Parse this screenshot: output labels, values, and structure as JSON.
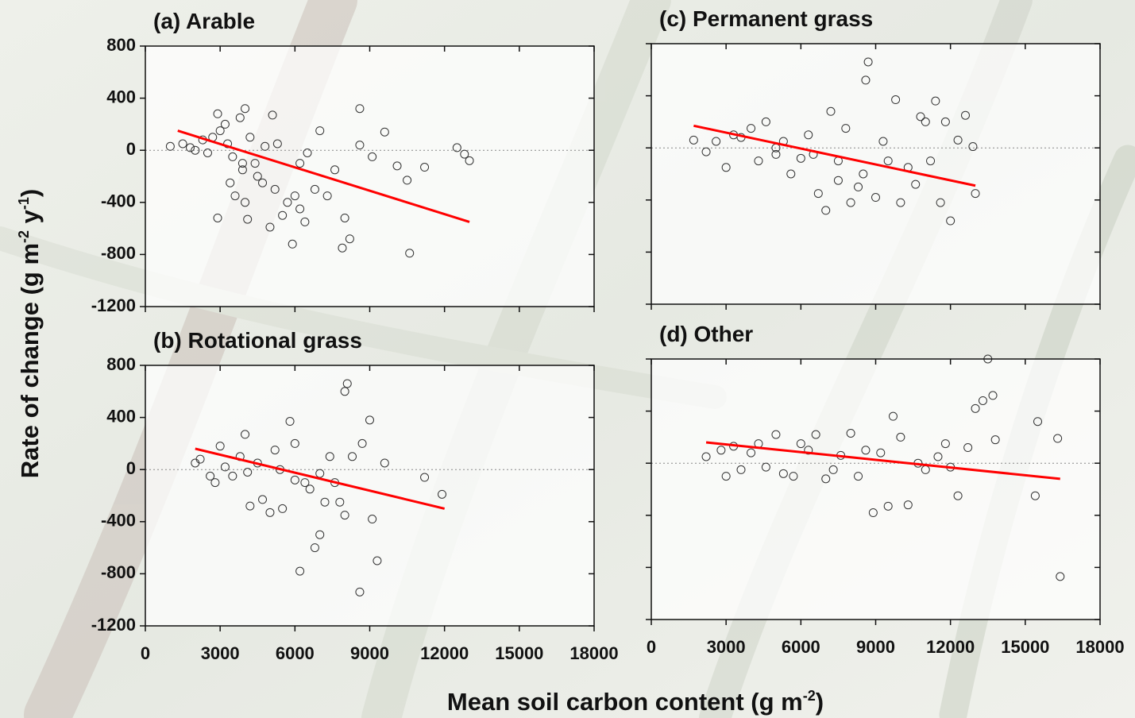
{
  "y_label": [
    "Rate of change (g m",
    "-2",
    " y",
    "-1",
    ")"
  ],
  "x_label": [
    "Mean soil carbon content (g m",
    "-2",
    ")"
  ],
  "chart_data": [
    {
      "type": "scatter",
      "title": "(a) Arable",
      "xlim": [
        0,
        18000
      ],
      "ylim": [
        -1200,
        800
      ],
      "xticks": [
        0,
        3000,
        6000,
        9000,
        12000,
        15000,
        18000
      ],
      "yticks": [
        800,
        400,
        0,
        -400,
        -800,
        -1200
      ],
      "show_xtick_labels": false,
      "show_ytick_labels": true,
      "zero_line": true,
      "series": [
        {
          "color": "#333333",
          "x": [
            1000,
            1500,
            1800,
            2000,
            2300,
            2500,
            2700,
            2900,
            3000,
            3200,
            3300,
            3500,
            3600,
            3800,
            3900,
            4000,
            4100,
            4200,
            4400,
            4500,
            4700,
            4800,
            5000,
            5200,
            5300,
            5500,
            5700,
            5900,
            6000,
            6200,
            6400,
            6500,
            6800,
            7000,
            7300,
            7600,
            7900,
            8000,
            8200,
            8600,
            9100,
            9600,
            10100,
            10500,
            10600,
            11200,
            12500,
            12800,
            13000,
            2900,
            3400,
            4000,
            5100,
            6200,
            8600,
            3900
          ],
          "values": [
            30,
            50,
            20,
            0,
            80,
            -20,
            100,
            -520,
            150,
            200,
            50,
            -50,
            -350,
            250,
            -150,
            320,
            -530,
            100,
            -100,
            -200,
            -250,
            30,
            -590,
            -300,
            50,
            -500,
            -400,
            -720,
            -350,
            -100,
            -550,
            -20,
            -300,
            150,
            -350,
            -150,
            -750,
            -520,
            -680,
            40,
            -50,
            140,
            -120,
            -230,
            -790,
            -130,
            20,
            -30,
            -80,
            280,
            -250,
            -400,
            270,
            -450,
            320,
            -100
          ]
        }
      ],
      "trend": {
        "color": "#ff0000",
        "x": [
          1300,
          13000
        ],
        "values": [
          150,
          -550
        ]
      }
    },
    {
      "type": "scatter",
      "title": "(b) Rotational grass",
      "xlim": [
        0,
        18000
      ],
      "ylim": [
        -1200,
        800
      ],
      "xticks": [
        0,
        3000,
        6000,
        9000,
        12000,
        15000,
        18000
      ],
      "yticks": [
        800,
        400,
        0,
        -400,
        -800,
        -1200
      ],
      "show_xtick_labels": true,
      "show_ytick_labels": true,
      "zero_line": true,
      "series": [
        {
          "color": "#333333",
          "x": [
            2000,
            2200,
            2600,
            2800,
            3000,
            3200,
            3500,
            3800,
            4000,
            4200,
            4500,
            4700,
            5000,
            5200,
            5500,
            5800,
            6000,
            6200,
            6400,
            6600,
            6800,
            7000,
            7200,
            7400,
            7600,
            7800,
            8000,
            8100,
            8300,
            8600,
            8700,
            9000,
            9100,
            9300,
            9600,
            11200,
            11900,
            4100,
            5400,
            6000,
            7000,
            8000
          ],
          "values": [
            50,
            80,
            -50,
            -100,
            180,
            20,
            -50,
            100,
            270,
            -280,
            50,
            -230,
            -330,
            150,
            -300,
            370,
            200,
            -780,
            -100,
            -150,
            -600,
            -500,
            -250,
            100,
            -100,
            -250,
            600,
            660,
            100,
            -940,
            200,
            380,
            -380,
            -700,
            50,
            -60,
            -190,
            -20,
            0,
            -80,
            -30,
            -350
          ]
        }
      ],
      "trend": {
        "color": "#ff0000",
        "x": [
          2000,
          12000
        ],
        "values": [
          160,
          -300
        ]
      }
    },
    {
      "type": "scatter",
      "title": "(c) Permanent grass",
      "xlim": [
        0,
        18000
      ],
      "ylim": [
        -1200,
        800
      ],
      "xticks": [
        0,
        3000,
        6000,
        9000,
        12000,
        15000,
        18000
      ],
      "yticks": [
        800,
        400,
        0,
        -400,
        -800,
        -1200
      ],
      "show_xtick_labels": false,
      "show_ytick_labels": false,
      "zero_line": true,
      "series": [
        {
          "color": "#333333",
          "x": [
            1700,
            2200,
            2600,
            3000,
            3300,
            3600,
            4000,
            4300,
            4600,
            5000,
            5300,
            5600,
            6000,
            6300,
            6700,
            7000,
            7200,
            7500,
            7800,
            8000,
            8300,
            8600,
            8700,
            9000,
            9300,
            9500,
            9800,
            10000,
            10300,
            10600,
            10800,
            11000,
            11200,
            11400,
            11600,
            11800,
            12000,
            12300,
            12600,
            12900,
            13000,
            5000,
            6500,
            7500,
            8500
          ],
          "values": [
            60,
            -30,
            50,
            -150,
            100,
            80,
            150,
            -100,
            200,
            -50,
            50,
            -200,
            -80,
            100,
            -350,
            -480,
            280,
            -250,
            150,
            -420,
            -300,
            520,
            660,
            -380,
            50,
            -100,
            370,
            -420,
            -150,
            -280,
            240,
            200,
            -100,
            360,
            -420,
            200,
            -560,
            60,
            250,
            10,
            -350,
            0,
            -50,
            -100,
            -200
          ]
        }
      ],
      "trend": {
        "color": "#ff0000",
        "x": [
          1700,
          13000
        ],
        "values": [
          170,
          -290
        ]
      }
    },
    {
      "type": "scatter",
      "title": "(d) Other",
      "xlim": [
        0,
        18000
      ],
      "ylim": [
        -1200,
        800
      ],
      "xticks": [
        0,
        3000,
        6000,
        9000,
        12000,
        15000,
        18000
      ],
      "yticks": [
        800,
        400,
        0,
        -400,
        -800,
        -1200
      ],
      "show_xtick_labels": true,
      "show_ytick_labels": false,
      "zero_line": true,
      "series": [
        {
          "color": "#333333",
          "x": [
            2200,
            2800,
            3000,
            3300,
            3600,
            4000,
            4300,
            4600,
            5000,
            5300,
            5700,
            6000,
            6300,
            6600,
            7000,
            7300,
            7600,
            8000,
            8300,
            8600,
            8900,
            9200,
            9500,
            9700,
            10000,
            10300,
            10700,
            11000,
            11500,
            11800,
            12000,
            12300,
            12700,
            13000,
            13300,
            13500,
            13700,
            13800,
            15400,
            15500,
            16300,
            16400
          ],
          "values": [
            50,
            100,
            -100,
            130,
            -50,
            80,
            150,
            -30,
            220,
            -80,
            -100,
            150,
            100,
            220,
            -120,
            -50,
            60,
            230,
            -100,
            100,
            -380,
            80,
            -330,
            360,
            200,
            -320,
            0,
            -50,
            50,
            150,
            -30,
            -250,
            120,
            420,
            480,
            800,
            520,
            180,
            -250,
            320,
            190,
            -870
          ]
        }
      ],
      "trend": {
        "color": "#ff0000",
        "x": [
          2200,
          16400
        ],
        "values": [
          160,
          -120
        ]
      }
    }
  ]
}
